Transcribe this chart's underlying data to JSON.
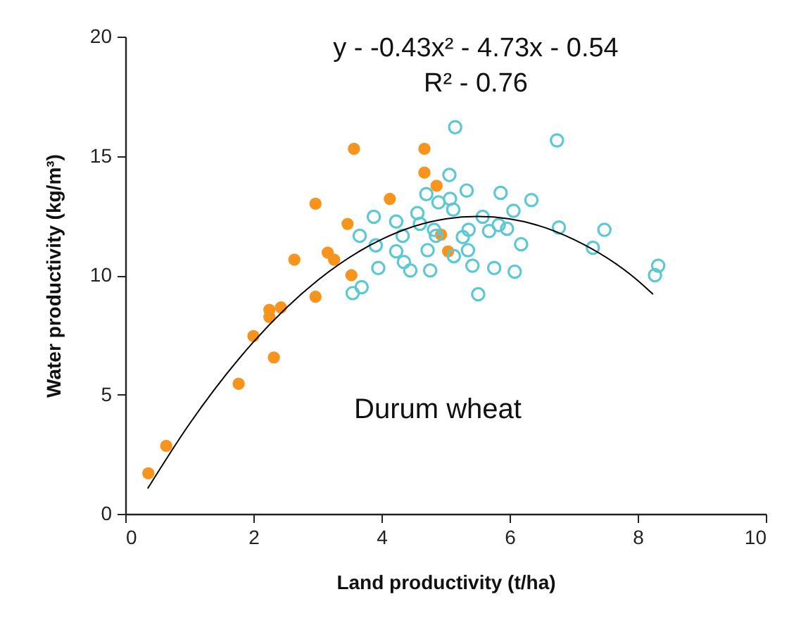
{
  "chart_data": {
    "type": "scatter",
    "xlabel": "Land productivity (t/ha)",
    "ylabel": "Water productivity (kg/m³)",
    "xlim": [
      0,
      10
    ],
    "ylim": [
      0,
      20
    ],
    "xticks": [
      0,
      2,
      4,
      6,
      8,
      10
    ],
    "yticks": [
      0,
      5,
      10,
      15,
      20
    ],
    "grid": false,
    "annotations": [
      "y - -0.43x² - 4.73x - 0.54",
      "R² - 0.76",
      "Durum wheat"
    ],
    "series": [
      {
        "marker": "circle",
        "color": "#f7941d",
        "x": [
          0.36,
          0.64,
          1.77,
          2.0,
          2.25,
          2.25,
          2.43,
          2.32,
          2.64,
          2.97,
          2.97,
          3.16,
          3.26,
          3.47,
          3.53,
          3.57,
          4.13,
          4.67,
          4.67,
          4.86,
          4.93,
          5.04
        ],
        "values": [
          1.7,
          2.85,
          5.45,
          7.45,
          8.55,
          8.25,
          8.65,
          6.55,
          10.65,
          13.0,
          9.1,
          10.95,
          10.65,
          12.15,
          10.0,
          15.3,
          13.2,
          15.3,
          14.3,
          13.75,
          11.7,
          11.0
        ]
      },
      {
        "marker": "circle",
        "color": "#5bc8d4",
        "x": [
          3.88,
          3.66,
          3.91,
          3.95,
          3.55,
          3.69,
          4.23,
          4.33,
          4.23,
          4.35,
          4.45,
          4.56,
          4.6,
          4.72,
          4.76,
          4.82,
          4.85,
          4.7,
          4.89,
          5.06,
          5.07,
          5.15,
          5.12,
          5.33,
          5.27,
          5.36,
          5.35,
          5.13,
          5.42,
          5.51,
          5.58,
          5.68,
          5.83,
          5.96,
          5.86,
          5.76,
          6.06,
          6.18,
          6.08,
          6.34,
          6.74,
          6.77,
          7.3,
          7.48,
          8.32,
          8.27
        ],
        "values": [
          12.45,
          11.65,
          11.25,
          10.3,
          9.25,
          9.5,
          12.25,
          11.65,
          11.0,
          10.55,
          10.2,
          12.6,
          12.15,
          11.05,
          10.2,
          11.9,
          11.65,
          13.4,
          13.05,
          14.2,
          13.2,
          16.2,
          12.75,
          13.55,
          11.6,
          11.9,
          11.05,
          10.8,
          10.4,
          9.2,
          12.45,
          11.85,
          12.1,
          11.95,
          13.45,
          10.3,
          12.7,
          11.3,
          10.15,
          13.15,
          15.65,
          12.0,
          11.15,
          11.9,
          10.4,
          10.0
        ]
      },
      {
        "type": "line",
        "color": "#000000",
        "x": [
          0.35,
          1,
          2,
          3,
          4,
          5,
          5.5,
          6,
          7,
          8,
          8.24
        ],
        "values": [
          1.06,
          3.76,
          7.2,
          9.78,
          11.5,
          12.36,
          12.46,
          12.36,
          11.5,
          9.78,
          9.2
        ]
      }
    ]
  }
}
